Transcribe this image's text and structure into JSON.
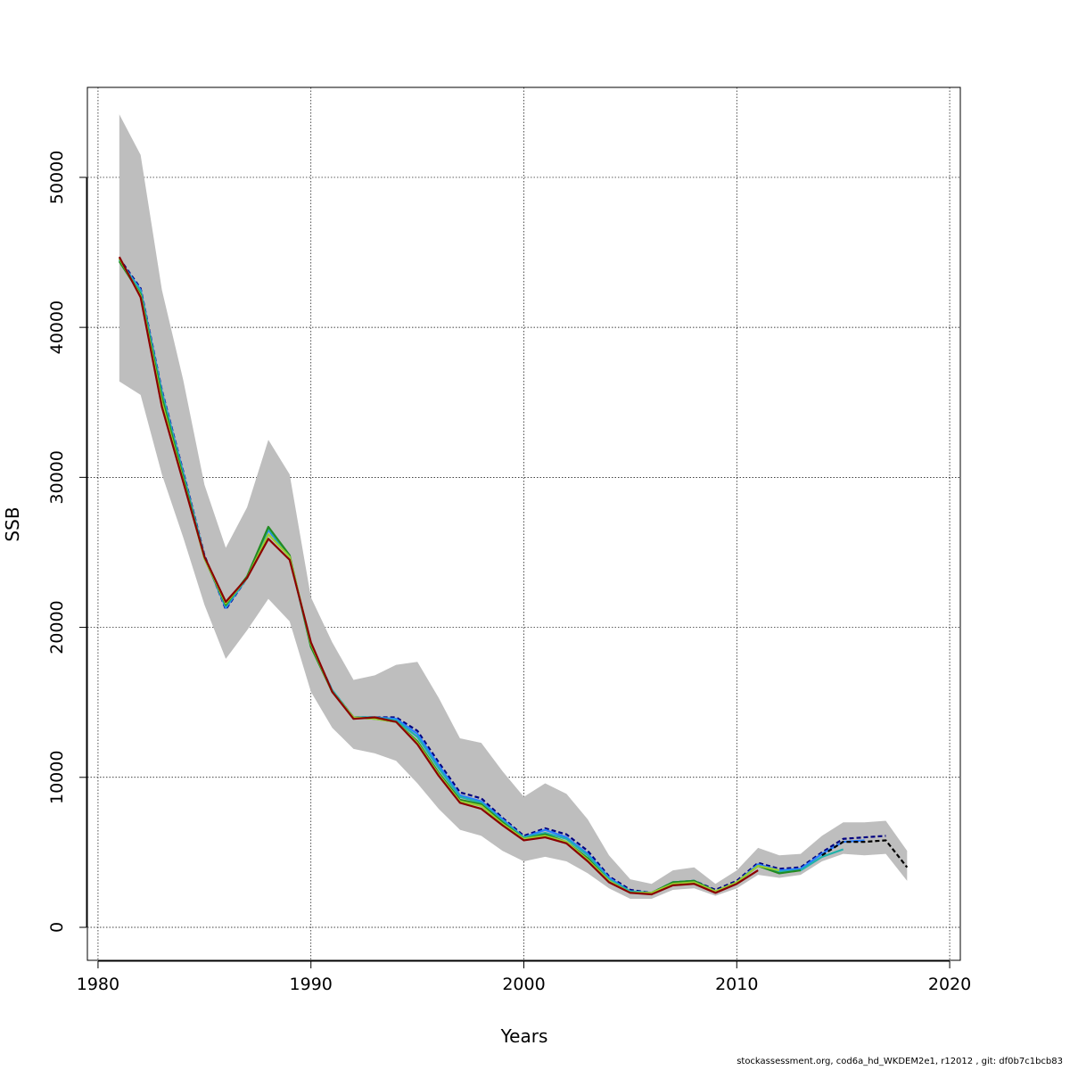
{
  "chart_data": {
    "type": "line",
    "xlabel": "Years",
    "ylabel": "SSB",
    "xlim": [
      1979.5,
      2020.5
    ],
    "ylim": [
      -2200,
      56000
    ],
    "x_ticks": [
      1980,
      1990,
      2000,
      2010,
      2020
    ],
    "y_ticks": [
      0,
      10000,
      20000,
      30000,
      40000,
      50000
    ],
    "grid": true,
    "band_color": "#bebebe",
    "confidence_band": {
      "x": [
        1981,
        1982,
        1983,
        1984,
        1985,
        1986,
        1987,
        1988,
        1989,
        1990,
        1991,
        1992,
        1993,
        1994,
        1995,
        1996,
        1997,
        1998,
        1999,
        2000,
        2001,
        2002,
        2003,
        2004,
        2005,
        2006,
        2007,
        2008,
        2009,
        2010,
        2011,
        2012,
        2013,
        2014,
        2015,
        2016,
        2017,
        2018
      ],
      "upper": [
        54200,
        51500,
        42500,
        36500,
        29500,
        25300,
        28000,
        32500,
        30200,
        22000,
        19000,
        16500,
        16800,
        17500,
        17700,
        15300,
        12600,
        12300,
        10400,
        8700,
        9600,
        8900,
        7200,
        4800,
        3200,
        2900,
        3800,
        4000,
        2900,
        3800,
        5300,
        4800,
        4900,
        6100,
        7000,
        7000,
        7100,
        5100
      ],
      "lower": [
        36400,
        35500,
        30200,
        26000,
        21500,
        17900,
        19800,
        21900,
        20400,
        15700,
        13300,
        11900,
        11600,
        11100,
        9600,
        7900,
        6500,
        6100,
        5100,
        4400,
        4700,
        4400,
        3600,
        2600,
        1900,
        1900,
        2500,
        2600,
        2100,
        2600,
        3500,
        3300,
        3500,
        4400,
        4900,
        4800,
        4900,
        3100
      ]
    },
    "series": [
      {
        "color": "#000080",
        "dash": true,
        "x": [
          1981,
          1982,
          1983,
          1984,
          1985,
          1986,
          1987,
          1988,
          1989,
          1990,
          1991,
          1992,
          1993,
          1994,
          1995,
          1996,
          1997,
          1998,
          1999,
          2000,
          2001,
          2002,
          2003,
          2004,
          2005,
          2006,
          2007,
          2008,
          2009,
          2010,
          2011,
          2012,
          2013,
          2014,
          2015,
          2016,
          2017
        ],
        "y": [
          44600,
          42600,
          35800,
          30400,
          24800,
          21200,
          23300,
          26500,
          24700,
          18800,
          15800,
          14000,
          14000,
          14000,
          13100,
          11000,
          9000,
          8600,
          7300,
          6100,
          6600,
          6200,
          5100,
          3400,
          2500,
          2300,
          3000,
          3100,
          2500,
          3100,
          4300,
          3900,
          4000,
          5000,
          5900,
          6000,
          6100
        ]
      },
      {
        "color": "#2a7fff",
        "x": [
          1981,
          1982,
          1983,
          1984,
          1985,
          1986,
          1987,
          1988,
          1989,
          1990,
          1991,
          1992,
          1993,
          1994,
          1995,
          1996,
          1997,
          1998,
          1999,
          2000,
          2001,
          2002,
          2003,
          2004,
          2005,
          2006,
          2007,
          2008,
          2009,
          2010,
          2011,
          2012,
          2013,
          2014,
          2015,
          2016
        ],
        "y": [
          44500,
          42500,
          35700,
          30300,
          24700,
          21300,
          23300,
          26500,
          24700,
          18800,
          15800,
          14000,
          14000,
          13900,
          12900,
          10800,
          8800,
          8400,
          7200,
          6000,
          6500,
          6000,
          4900,
          3300,
          2400,
          2300,
          3000,
          3100,
          2400,
          3000,
          4200,
          3800,
          3900,
          4900,
          5700,
          5800
        ]
      },
      {
        "color": "#20b2aa",
        "x": [
          1981,
          1982,
          1983,
          1984,
          1985,
          1986,
          1987,
          1988,
          1989,
          1990,
          1991,
          1992,
          1993,
          1994,
          1995,
          1996,
          1997,
          1998,
          1999,
          2000,
          2001,
          2002,
          2003,
          2004,
          2005,
          2006,
          2007,
          2008,
          2009,
          2010,
          2011,
          2012,
          2013,
          2014,
          2015
        ],
        "y": [
          44500,
          42400,
          35600,
          30200,
          24700,
          21400,
          23300,
          26600,
          24700,
          18700,
          15800,
          14000,
          14000,
          13800,
          12700,
          10600,
          8700,
          8300,
          7100,
          6000,
          6300,
          5900,
          4800,
          3200,
          2400,
          2300,
          3000,
          3100,
          2400,
          3000,
          4100,
          3700,
          3800,
          4700,
          5200
        ]
      },
      {
        "color": "#228b22",
        "x": [
          1981,
          1982,
          1983,
          1984,
          1985,
          1986,
          1987,
          1988,
          1989,
          1990,
          1991,
          1992,
          1993,
          1994,
          1995,
          1996,
          1997,
          1998,
          1999,
          2000,
          2001,
          2002,
          2003,
          2004,
          2005,
          2006,
          2007,
          2008,
          2009,
          2010,
          2011,
          2012,
          2013
        ],
        "y": [
          44400,
          42200,
          35300,
          30000,
          24600,
          21500,
          23400,
          26700,
          24800,
          18700,
          15700,
          14000,
          13900,
          13700,
          12400,
          10300,
          8500,
          8200,
          7000,
          5900,
          6200,
          5700,
          4600,
          3100,
          2300,
          2300,
          3000,
          3100,
          2400,
          3000,
          4100,
          3600,
          3800
        ]
      },
      {
        "color": "#9acd32",
        "x": [
          1981,
          1982,
          1983,
          1984,
          1985,
          1986,
          1987,
          1988,
          1989,
          1990,
          1991,
          1992,
          1993,
          1994,
          1995,
          1996,
          1997,
          1998,
          1999,
          2000,
          2001,
          2002,
          2003,
          2004,
          2005,
          2006,
          2007,
          2008,
          2009,
          2010,
          2011,
          2012
        ],
        "y": [
          44600,
          42100,
          35000,
          29800,
          24600,
          21600,
          23300,
          26200,
          24700,
          18900,
          15700,
          14000,
          13900,
          13700,
          12300,
          10200,
          8400,
          8100,
          6900,
          5900,
          6100,
          5700,
          4500,
          3100,
          2300,
          2300,
          2900,
          3000,
          2400,
          3000,
          4100,
          3800
        ]
      },
      {
        "color": "#8b0000",
        "x": [
          1981,
          1982,
          1983,
          1984,
          1985,
          1986,
          1987,
          1988,
          1989,
          1990,
          1991,
          1992,
          1993,
          1994,
          1995,
          1996,
          1997,
          1998,
          1999,
          2000,
          2001,
          2002,
          2003,
          2004,
          2005,
          2006,
          2007,
          2008,
          2009,
          2010,
          2011
        ],
        "y": [
          44700,
          42000,
          34700,
          29700,
          24700,
          21700,
          23300,
          25900,
          24500,
          19000,
          15700,
          13900,
          14000,
          13700,
          12200,
          10100,
          8300,
          7900,
          6800,
          5800,
          6000,
          5600,
          4400,
          3000,
          2300,
          2200,
          2800,
          2900,
          2300,
          2900,
          3800
        ]
      },
      {
        "color": "#000000",
        "dash": true,
        "x": [
          2014,
          2015,
          2016,
          2017,
          2018
        ],
        "y": [
          4800,
          5700,
          5700,
          5800,
          4000
        ]
      }
    ]
  },
  "footer_text": "stockassessment.org, cod6a_hd_WKDEM2e1, r12012 , git: df0b7c1bcb83"
}
